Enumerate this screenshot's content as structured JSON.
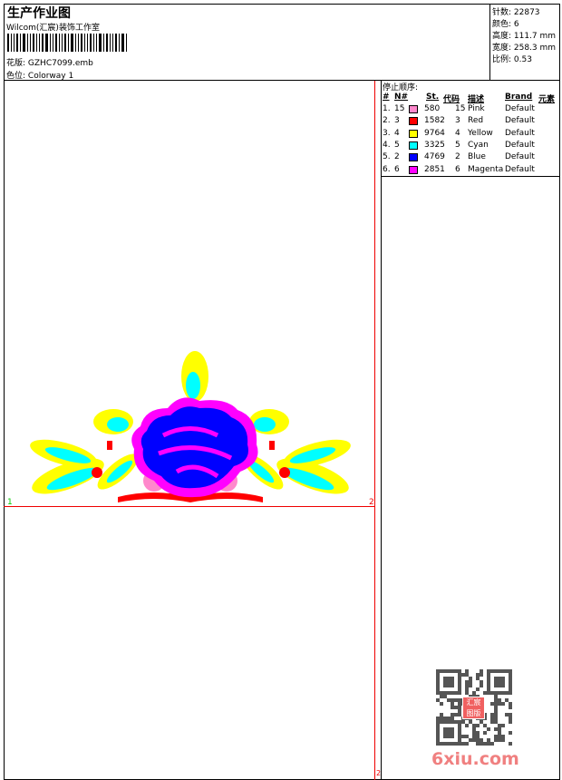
{
  "header": {
    "title": "生产作业图",
    "subtitle": "Wilcom(汇宸)装饰工作室",
    "design_label": "花版:",
    "design_value": "GZHC7099.emb",
    "colorway_label": "色位:",
    "colorway_value": "Colorway 1"
  },
  "info": {
    "stitches": "针数: 22873",
    "colors": "颜色: 6",
    "height": "高度: 111.7 mm",
    "width": "宽度: 258.3 mm",
    "scale": "比例: 0.53"
  },
  "stop_sequence": {
    "title": "停止顺序:",
    "columns": [
      "#",
      "N#",
      "St.",
      "代码",
      "描述",
      "Brand",
      "元素"
    ],
    "rows": [
      {
        "idx": "1.",
        "n": "15",
        "color": "#ff88cc",
        "st": "580",
        "code": "15",
        "desc": "Pink",
        "brand": "Default"
      },
      {
        "idx": "2.",
        "n": "3",
        "color": "#ff0000",
        "st": "1582",
        "code": "3",
        "desc": "Red",
        "brand": "Default"
      },
      {
        "idx": "3.",
        "n": "4",
        "color": "#ffff00",
        "st": "9764",
        "code": "4",
        "desc": "Yellow",
        "brand": "Default"
      },
      {
        "idx": "4.",
        "n": "5",
        "color": "#00ffff",
        "st": "3325",
        "code": "5",
        "desc": "Cyan",
        "brand": "Default"
      },
      {
        "idx": "5.",
        "n": "2",
        "color": "#0000ff",
        "st": "4769",
        "code": "2",
        "desc": "Blue",
        "brand": "Default"
      },
      {
        "idx": "6.",
        "n": "6",
        "color": "#ff00ff",
        "st": "2851",
        "code": "6",
        "desc": "Magenta",
        "brand": "Default"
      }
    ]
  },
  "markers": {
    "start": "1",
    "end": "2",
    "page": "2"
  },
  "watermark": {
    "site": "6xiu.com",
    "seal": "汇宸图版"
  }
}
